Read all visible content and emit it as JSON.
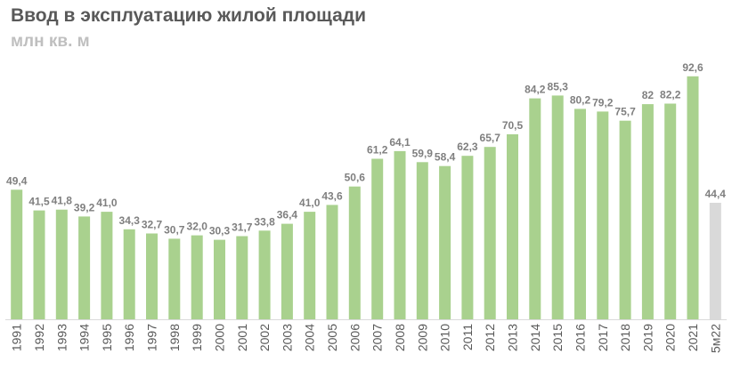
{
  "title": "Ввод в эксплуатацию жилой площади",
  "subtitle": "млн кв. м",
  "colors": {
    "main": "#a9d18e",
    "last": "#d9d9d9",
    "baseline": "#d9d9d9"
  },
  "chart_data": {
    "type": "bar",
    "title": "Ввод в эксплуатацию жилой площади",
    "ylabel": "млн кв. м",
    "ylim": [
      0,
      100
    ],
    "grid": false,
    "categories": [
      "1991",
      "1992",
      "1993",
      "1994",
      "1995",
      "1996",
      "1997",
      "1998",
      "1999",
      "2000",
      "2001",
      "2002",
      "2003",
      "2004",
      "2005",
      "2006",
      "2007",
      "2008",
      "2009",
      "2010",
      "2011",
      "2012",
      "2013",
      "2014",
      "2015",
      "2016",
      "2017",
      "2018",
      "2019",
      "2020",
      "2021",
      "5м22"
    ],
    "values": [
      49.4,
      41.5,
      41.8,
      39.2,
      41.0,
      34.3,
      32.7,
      30.7,
      32.0,
      30.3,
      31.7,
      33.8,
      36.4,
      41.0,
      43.6,
      50.6,
      61.2,
      64.1,
      59.9,
      58.4,
      62.3,
      65.7,
      70.5,
      84.2,
      85.3,
      80.2,
      79.2,
      75.7,
      82,
      82.2,
      92.6,
      44.4
    ],
    "labels": [
      "49,4",
      "41,5",
      "41,8",
      "39,2",
      "41,0",
      "34,3",
      "32,7",
      "30,7",
      "32,0",
      "30,3",
      "31,7",
      "33,8",
      "36,4",
      "41,0",
      "43,6",
      "50,6",
      "61,2",
      "64,1",
      "59,9",
      "58,4",
      "62,3",
      "65,7",
      "70,5",
      "84,2",
      "85,3",
      "80,2",
      "79,2",
      "75,7",
      "82",
      "82,2",
      "92,6",
      "44,4"
    ]
  }
}
